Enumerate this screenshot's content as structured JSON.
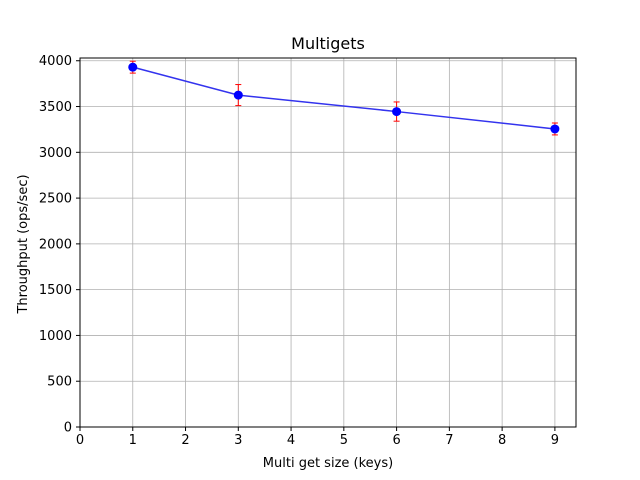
{
  "chart_data": {
    "type": "line",
    "title": "Multigets",
    "xlabel": "Multi get size (keys)",
    "ylabel": "Throughput (ops/sec)",
    "xlim": [
      0,
      9.4
    ],
    "ylim": [
      0,
      4030
    ],
    "xticks": [
      "0",
      "1",
      "2",
      "3",
      "4",
      "5",
      "6",
      "7",
      "8",
      "9"
    ],
    "yticks": [
      "0",
      "500",
      "1000",
      "1500",
      "2000",
      "2500",
      "3000",
      "3500",
      "4000"
    ],
    "grid": true,
    "series": [
      {
        "x": [
          1,
          3,
          6,
          9
        ],
        "y": [
          3930,
          3625,
          3445,
          3255
        ],
        "error": [
          65,
          115,
          105,
          65
        ],
        "line_color": "#3333ee",
        "marker_color": "#0000ff",
        "error_color": "#ff0000"
      }
    ]
  }
}
